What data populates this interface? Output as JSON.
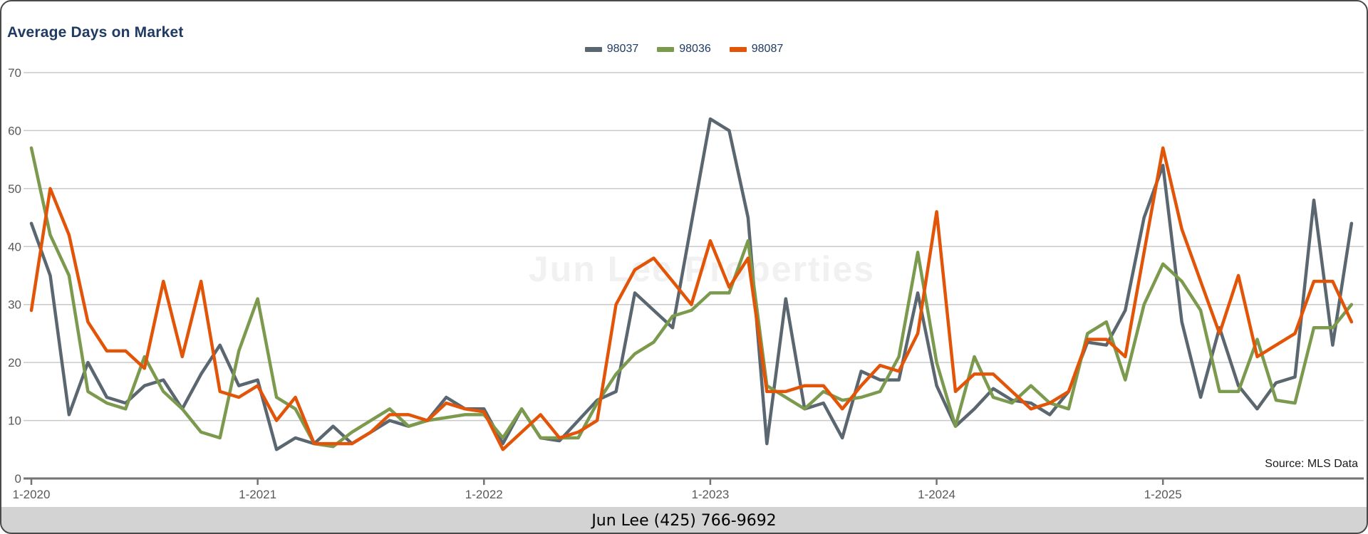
{
  "header": {
    "title": "Average Days on Market"
  },
  "legend": [
    {
      "label": "98037",
      "color": "#5b6770"
    },
    {
      "label": "98036",
      "color": "#7b9a4e"
    },
    {
      "label": "98087",
      "color": "#e25508"
    }
  ],
  "watermark": "Jun Lee Properties",
  "source_note": "Source: MLS Data",
  "footer": {
    "text": "Jun Lee (425) 766-9692"
  },
  "chart_data": {
    "type": "line",
    "title": "Average Days on Market",
    "ylabel": "",
    "xlabel": "",
    "ylim": [
      0,
      70
    ],
    "yticks": [
      0,
      10,
      20,
      30,
      40,
      50,
      60,
      70
    ],
    "grid": "horizontal",
    "legend_position": "top-center",
    "x_start": "1-2020",
    "x_end": "11-2025",
    "x_interval": "monthly",
    "n_points": 71,
    "x_tick_labels": [
      "1-2020",
      "1-2021",
      "1-2022",
      "1-2023",
      "1-2024",
      "1-2025"
    ],
    "x_tick_indices": [
      0,
      12,
      24,
      36,
      48,
      60
    ],
    "series": [
      {
        "name": "98037",
        "color": "#5b6770",
        "values": [
          44,
          35,
          11,
          20,
          14,
          13,
          16,
          17,
          12,
          18,
          23,
          16,
          17,
          5,
          7,
          6,
          9,
          6,
          8,
          10,
          9,
          10,
          14,
          12,
          12,
          6,
          12,
          7,
          6.5,
          10,
          13.5,
          15,
          32,
          29,
          26,
          44,
          62,
          60,
          45,
          6,
          31,
          12,
          13,
          7,
          18.5,
          17,
          17,
          32,
          16,
          9,
          12,
          15.5,
          13.5,
          13,
          11,
          15,
          23.5,
          23,
          29,
          45,
          54,
          27,
          14,
          26,
          16,
          12,
          16.5,
          17.5,
          48,
          23,
          44
        ]
      },
      {
        "name": "98036",
        "color": "#7b9a4e",
        "values": [
          57,
          42,
          35,
          15,
          13,
          12,
          21,
          15,
          12,
          8,
          7,
          22,
          31,
          14,
          12,
          6,
          5.5,
          8,
          10,
          12,
          9,
          10,
          10.5,
          11,
          11,
          7,
          12,
          7,
          7,
          7,
          13,
          18,
          21.5,
          23.5,
          28,
          29,
          32,
          32,
          41,
          16,
          14,
          12,
          15,
          13.5,
          14,
          15,
          21,
          39,
          20,
          9,
          21,
          14,
          13,
          16,
          13,
          12,
          25,
          27,
          17,
          30,
          37,
          34,
          29,
          15,
          15,
          24,
          13.5,
          13,
          26,
          26,
          30
        ]
      },
      {
        "name": "98087",
        "color": "#e25508",
        "values": [
          29,
          50,
          42,
          27,
          22,
          22,
          19,
          34,
          21,
          34,
          15,
          14,
          16,
          10,
          14,
          6,
          6,
          6,
          8,
          11,
          11,
          10,
          13,
          12,
          11.5,
          5,
          8,
          11,
          7,
          8,
          10,
          30,
          36,
          38,
          34,
          30,
          41,
          33,
          38,
          15,
          15,
          16,
          16,
          12,
          16,
          19.5,
          18.5,
          25,
          46,
          15,
          18,
          18,
          15,
          12,
          13,
          15,
          24,
          24,
          21,
          39,
          57,
          43,
          34,
          25,
          35,
          21,
          23,
          25,
          34,
          34,
          27
        ]
      }
    ]
  }
}
